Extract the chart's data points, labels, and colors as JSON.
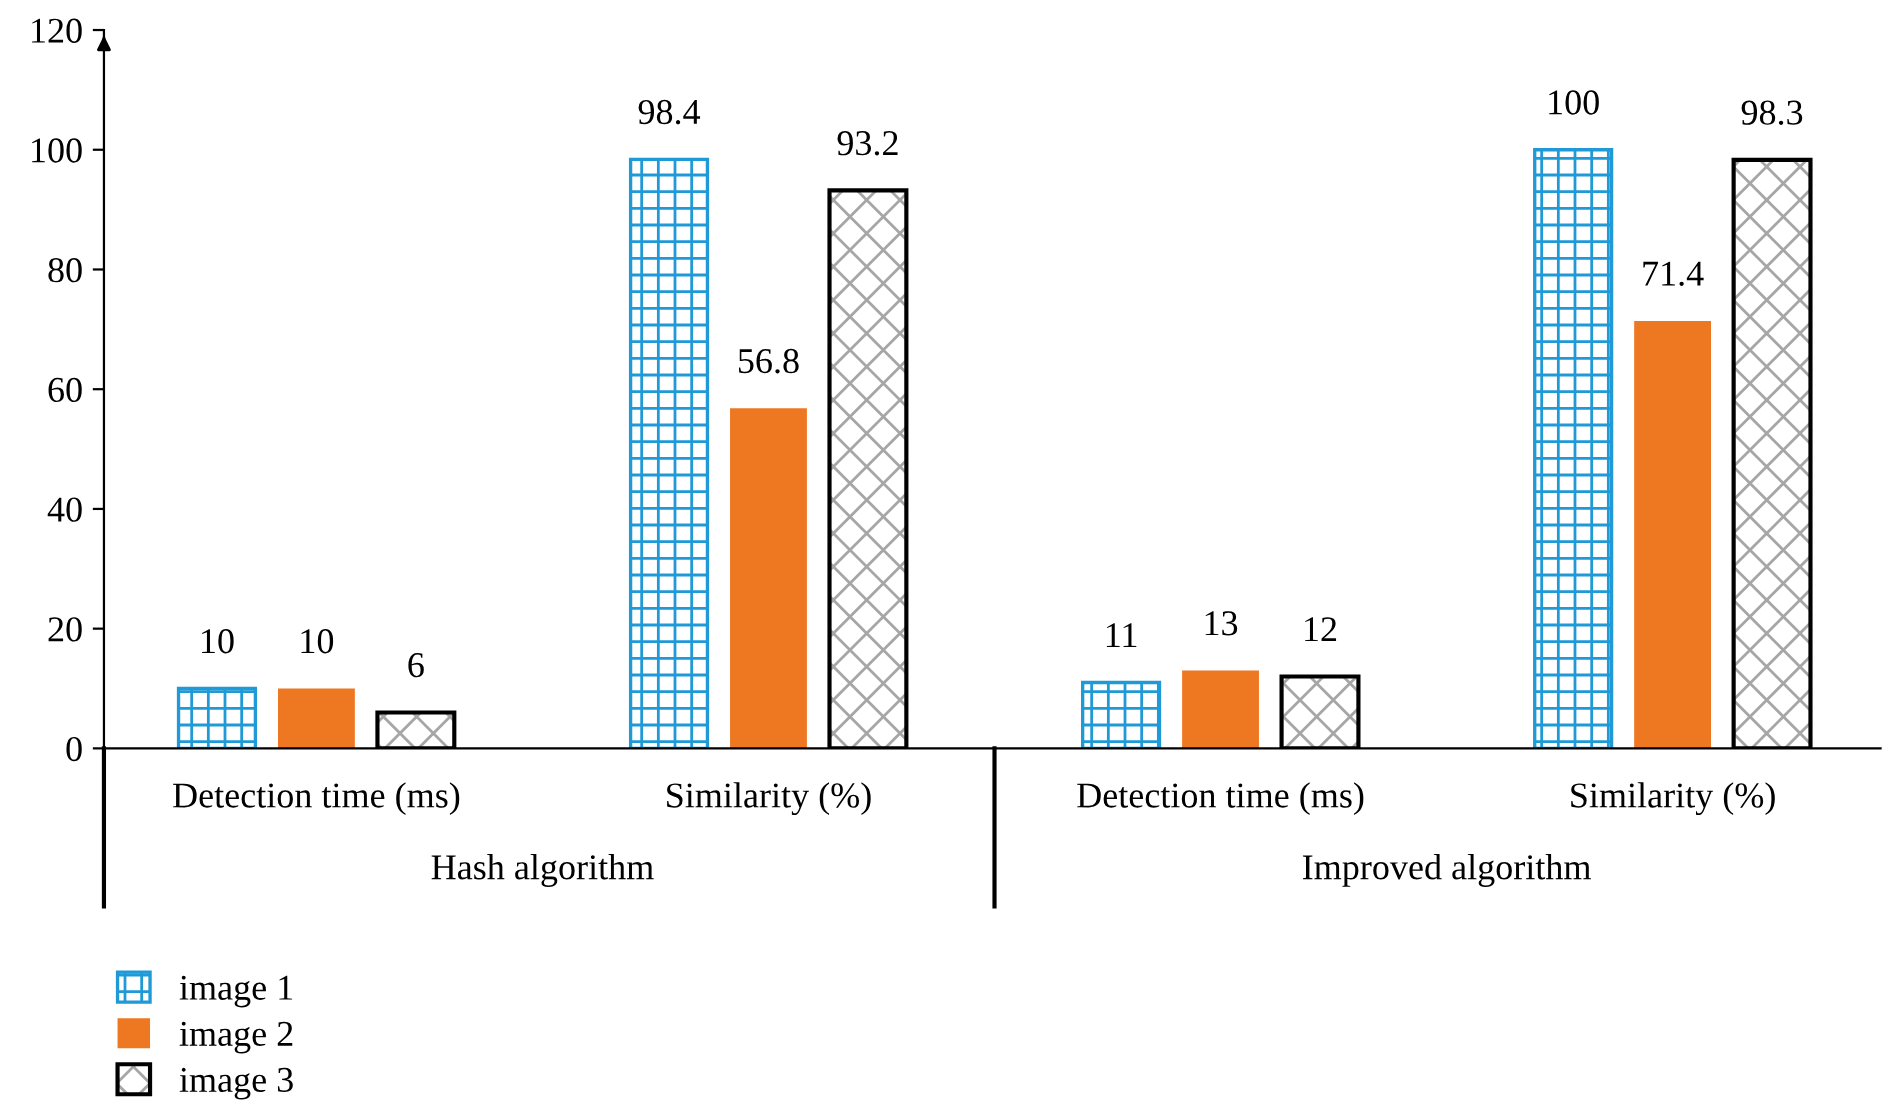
{
  "chart_data": {
    "type": "bar",
    "categories": [
      "Detection time (ms)",
      "Similarity (%)",
      "Detection time (ms)",
      "Similarity (%)"
    ],
    "series": [
      {
        "name": "image 1",
        "color": "#1f9ad6",
        "values": [
          10,
          98.4,
          11,
          100
        ]
      },
      {
        "name": "image 2",
        "color": "#ee7722",
        "values": [
          10,
          56.8,
          13,
          71.4
        ]
      },
      {
        "name": "image 3",
        "color": "#000000",
        "values": [
          6,
          93.2,
          12,
          98.3
        ]
      }
    ],
    "annotations": [
      "Hash algorithm",
      "Improved algorithm"
    ],
    "ylim": [
      0,
      120
    ],
    "yticks": [
      0,
      20,
      40,
      60,
      80,
      100,
      120
    ],
    "data_labels": true,
    "grid": false,
    "legend": "bottom left"
  }
}
